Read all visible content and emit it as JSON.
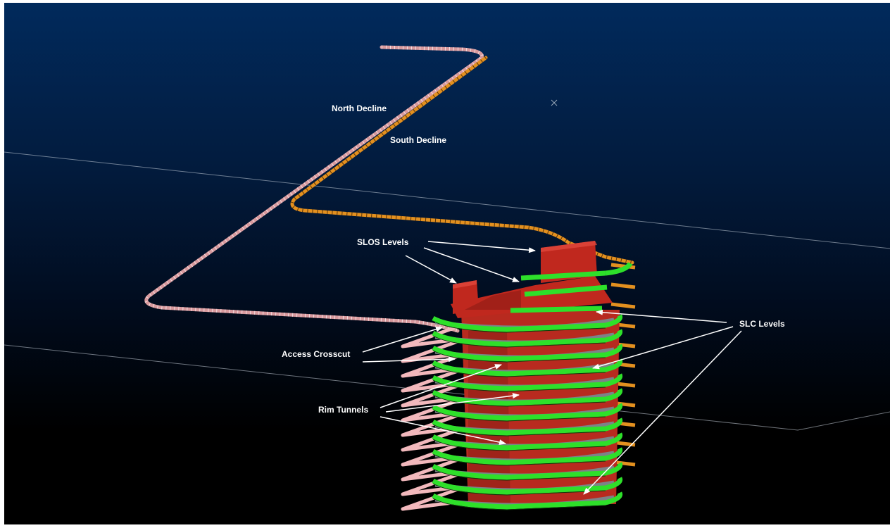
{
  "labels": {
    "north_decline": "North Decline",
    "south_decline": "South Decline",
    "slos_levels": "SLOS Levels",
    "slc_levels": "SLC Levels",
    "access_crosscut": "Access Crosscut",
    "rim_tunnels": "Rim Tunnels"
  },
  "colors": {
    "background_top": "#012a5c",
    "background_bottom": "#000000",
    "north_decline": "#d89a9e",
    "south_decline": "#e3901f",
    "slos_stopes": "#c0281e",
    "slc_rings": "#2ee02a",
    "access_crosscut": "#f2b8bc",
    "annotation_arrow": "#ffffff"
  },
  "marker_icon": "cross-marker-icon"
}
